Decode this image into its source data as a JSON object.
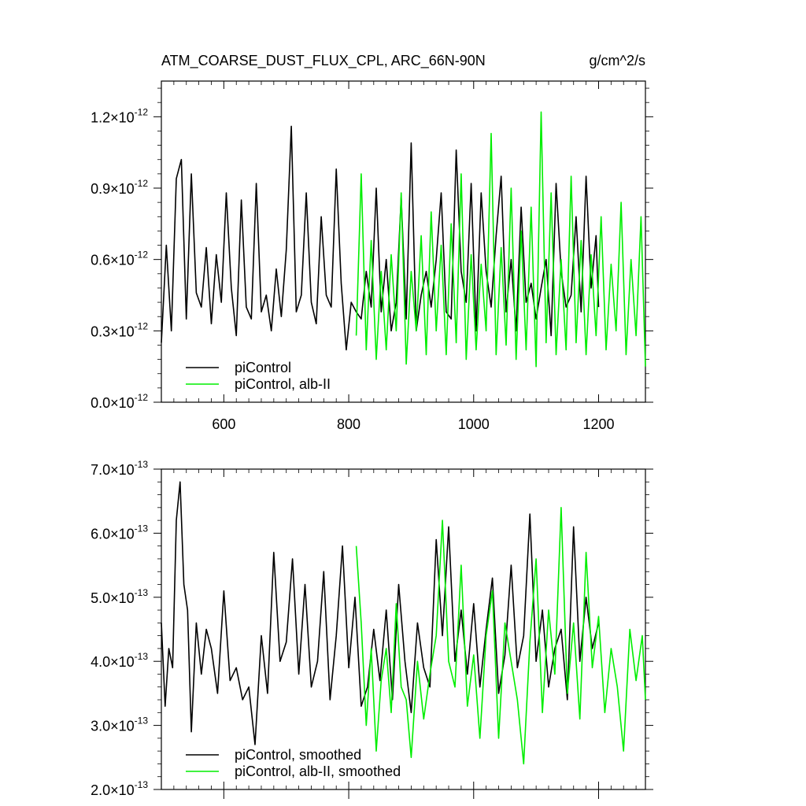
{
  "colors": {
    "series_1": "#000000",
    "series_2": "#00ee00",
    "axis": "#000000"
  },
  "chart_data": [
    {
      "type": "line",
      "title_left": "ATM_COARSE_DUST_FLUX_CPL, ARC_66N-90N",
      "title_right": "g/cm^2/s",
      "xlim": [
        500,
        1275
      ],
      "ylim": [
        0.0,
        1.35
      ],
      "x_ticks": [
        600,
        800,
        1000,
        1200
      ],
      "x_tick_labels": [
        "600",
        "800",
        "1000",
        "1200"
      ],
      "y_ticks": [
        0.0,
        0.3,
        0.6,
        0.9,
        1.2
      ],
      "y_tick_labels": [
        {
          "mantissa": "0.0",
          "times": "×10",
          "exponent": "-12"
        },
        {
          "mantissa": "0.3",
          "times": "×10",
          "exponent": "-12"
        },
        {
          "mantissa": "0.6",
          "times": "×10",
          "exponent": "-12"
        },
        {
          "mantissa": "0.9",
          "times": "×10",
          "exponent": "-12"
        },
        {
          "mantissa": "1.2",
          "times": "×10",
          "exponent": "-12"
        }
      ],
      "y_scale_note": "values in units of 1e-12 g/cm^2/s",
      "legend_position": "bottom-left",
      "series": [
        {
          "name": "piControl",
          "color": "#000000",
          "x": [
            500,
            508,
            516,
            524,
            532,
            540,
            548,
            556,
            564,
            572,
            580,
            588,
            596,
            604,
            612,
            620,
            628,
            636,
            644,
            652,
            660,
            668,
            676,
            684,
            692,
            700,
            708,
            716,
            724,
            732,
            740,
            748,
            756,
            764,
            772,
            780,
            788,
            796,
            804,
            812,
            820,
            828,
            836,
            844,
            852,
            860,
            868,
            876,
            884,
            892,
            900,
            908,
            916,
            924,
            932,
            940,
            948,
            956,
            964,
            972,
            980,
            988,
            996,
            1004,
            1012,
            1020,
            1028,
            1036,
            1044,
            1052,
            1060,
            1068,
            1076,
            1084,
            1092,
            1100,
            1108,
            1116,
            1124,
            1132,
            1140,
            1148,
            1156,
            1164,
            1172,
            1180,
            1188,
            1196,
            1200
          ],
          "y": [
            0.25,
            0.66,
            0.3,
            0.94,
            1.02,
            0.35,
            0.96,
            0.46,
            0.4,
            0.65,
            0.33,
            0.62,
            0.42,
            0.88,
            0.48,
            0.28,
            0.85,
            0.4,
            0.35,
            0.92,
            0.38,
            0.45,
            0.3,
            0.56,
            0.36,
            0.64,
            1.16,
            0.38,
            0.45,
            0.88,
            0.42,
            0.33,
            0.78,
            0.45,
            0.4,
            0.98,
            0.5,
            0.22,
            0.42,
            0.38,
            0.35,
            0.55,
            0.4,
            0.9,
            0.38,
            0.6,
            0.3,
            0.42,
            0.86,
            0.35,
            1.09,
            0.3,
            0.45,
            0.55,
            0.4,
            0.6,
            0.88,
            0.38,
            0.35,
            1.06,
            0.55,
            0.42,
            0.92,
            0.3,
            0.88,
            0.55,
            0.4,
            0.7,
            0.95,
            0.38,
            0.6,
            0.3,
            0.82,
            0.42,
            0.5,
            0.35,
            0.48,
            0.6,
            0.28,
            0.92,
            0.55,
            0.4,
            0.45,
            0.78,
            0.38,
            0.95,
            0.48,
            0.7,
            0.4
          ]
        },
        {
          "name": "piControl, alb-II",
          "color": "#00ee00",
          "x": [
            812,
            820,
            828,
            836,
            844,
            852,
            860,
            868,
            876,
            884,
            892,
            900,
            908,
            916,
            924,
            932,
            940,
            948,
            956,
            964,
            972,
            980,
            988,
            996,
            1004,
            1012,
            1020,
            1028,
            1036,
            1044,
            1052,
            1060,
            1068,
            1076,
            1084,
            1092,
            1100,
            1108,
            1116,
            1124,
            1132,
            1140,
            1148,
            1156,
            1164,
            1172,
            1180,
            1188,
            1196,
            1204,
            1212,
            1220,
            1228,
            1236,
            1244,
            1252,
            1260,
            1268,
            1275
          ],
          "y": [
            0.28,
            0.96,
            0.22,
            0.68,
            0.18,
            0.55,
            0.22,
            0.62,
            0.3,
            0.88,
            0.16,
            0.55,
            0.3,
            0.7,
            0.2,
            0.8,
            0.3,
            0.66,
            0.2,
            0.75,
            0.25,
            0.96,
            0.18,
            0.62,
            0.22,
            0.58,
            0.3,
            1.13,
            0.2,
            0.65,
            0.24,
            0.9,
            0.18,
            0.72,
            0.22,
            0.82,
            0.15,
            1.22,
            0.25,
            0.88,
            0.2,
            0.6,
            0.22,
            0.95,
            0.25,
            0.68,
            0.2,
            0.62,
            0.28,
            0.78,
            0.22,
            0.58,
            0.3,
            0.84,
            0.2,
            0.6,
            0.28,
            0.78,
            0.15
          ]
        }
      ]
    },
    {
      "type": "line",
      "xlim": [
        500,
        1275
      ],
      "ylim": [
        2.0,
        7.0
      ],
      "y_ticks": [
        2.0,
        3.0,
        4.0,
        5.0,
        6.0,
        7.0
      ],
      "y_tick_labels": [
        {
          "mantissa": "2.0",
          "times": "×10",
          "exponent": "-13"
        },
        {
          "mantissa": "3.0",
          "times": "×10",
          "exponent": "-13"
        },
        {
          "mantissa": "4.0",
          "times": "×10",
          "exponent": "-13"
        },
        {
          "mantissa": "5.0",
          "times": "×10",
          "exponent": "-13"
        },
        {
          "mantissa": "6.0",
          "times": "×10",
          "exponent": "-13"
        },
        {
          "mantissa": "7.0",
          "times": "×10",
          "exponent": "-13"
        }
      ],
      "y_scale_note": "values in units of 1e-13 g/cm^2/s",
      "legend_position": "bottom-left",
      "series": [
        {
          "name": "piControl, smoothed",
          "color": "#000000",
          "x": [
            500,
            506,
            512,
            518,
            524,
            530,
            536,
            542,
            548,
            556,
            564,
            572,
            580,
            590,
            600,
            610,
            620,
            630,
            640,
            650,
            660,
            670,
            680,
            690,
            700,
            710,
            720,
            730,
            740,
            750,
            760,
            770,
            780,
            790,
            800,
            810,
            820,
            830,
            840,
            850,
            860,
            870,
            880,
            890,
            900,
            910,
            920,
            930,
            940,
            950,
            960,
            970,
            980,
            990,
            1000,
            1010,
            1020,
            1030,
            1040,
            1050,
            1060,
            1070,
            1080,
            1090,
            1100,
            1110,
            1120,
            1130,
            1140,
            1150,
            1160,
            1170,
            1180,
            1190,
            1200
          ],
          "y": [
            4.6,
            3.3,
            4.2,
            3.9,
            6.2,
            6.8,
            5.2,
            4.8,
            2.9,
            4.6,
            3.8,
            4.5,
            4.2,
            3.5,
            5.1,
            3.7,
            3.9,
            3.4,
            3.6,
            2.7,
            4.4,
            3.5,
            5.7,
            4.0,
            4.3,
            5.6,
            3.8,
            5.2,
            3.6,
            4.0,
            5.4,
            3.4,
            4.4,
            5.8,
            3.9,
            5.0,
            3.3,
            3.6,
            4.5,
            3.7,
            4.8,
            3.4,
            5.2,
            4.0,
            3.2,
            4.6,
            3.9,
            3.6,
            5.9,
            4.4,
            6.1,
            4.0,
            4.8,
            3.8,
            4.9,
            3.6,
            4.5,
            5.3,
            3.5,
            4.1,
            5.5,
            3.9,
            4.4,
            6.3,
            4.0,
            4.8,
            3.6,
            4.2,
            4.5,
            3.4,
            6.1,
            4.0,
            5.0,
            4.2,
            4.6
          ]
        },
        {
          "name": "piControl, alb-II, smoothed",
          "color": "#00ee00",
          "x": [
            812,
            820,
            828,
            836,
            844,
            852,
            860,
            868,
            876,
            884,
            892,
            900,
            910,
            920,
            930,
            940,
            950,
            960,
            970,
            980,
            990,
            1000,
            1010,
            1020,
            1030,
            1040,
            1050,
            1060,
            1070,
            1080,
            1090,
            1100,
            1110,
            1120,
            1130,
            1140,
            1150,
            1160,
            1170,
            1180,
            1190,
            1200,
            1210,
            1220,
            1230,
            1240,
            1250,
            1260,
            1270,
            1275
          ],
          "y": [
            5.8,
            4.6,
            3.0,
            4.2,
            2.6,
            3.7,
            4.2,
            3.2,
            4.9,
            3.6,
            3.4,
            2.5,
            4.0,
            3.1,
            3.8,
            4.4,
            6.2,
            4.0,
            3.6,
            5.5,
            3.3,
            4.1,
            2.8,
            4.4,
            5.1,
            2.8,
            4.6,
            4.0,
            3.4,
            2.4,
            4.3,
            5.6,
            3.2,
            4.8,
            3.8,
            6.4,
            3.5,
            4.6,
            3.1,
            5.7,
            3.9,
            4.7,
            3.2,
            4.2,
            3.6,
            2.6,
            4.5,
            3.7,
            4.4,
            3.4
          ]
        }
      ]
    }
  ]
}
